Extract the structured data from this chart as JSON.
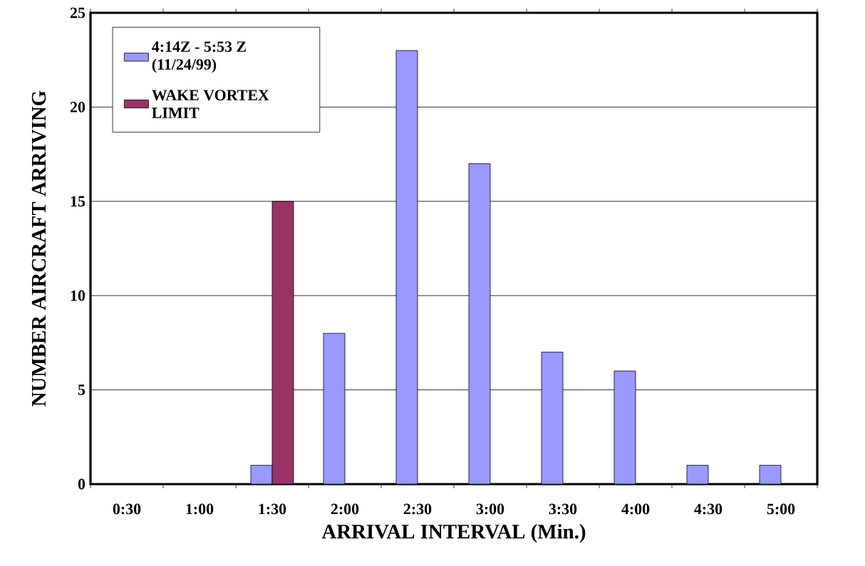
{
  "chart_data": {
    "type": "bar",
    "xlabel": "ARRIVAL INTERVAL (Min.)",
    "ylabel": "NUMBER AIRCRAFT ARRIVING",
    "categories": [
      "0:30",
      "1:00",
      "1:30",
      "2:00",
      "2:30",
      "3:00",
      "3:30",
      "4:00",
      "4:30",
      "5:00"
    ],
    "series": [
      {
        "name": "4:14Z - 5:53 Z (11/24/99)",
        "color": "#9999ff",
        "values": [
          0,
          0,
          1,
          8,
          23,
          17,
          7,
          6,
          1,
          1
        ]
      },
      {
        "name": "WAKE VORTEX LIMIT",
        "color": "#993366",
        "values": [
          null,
          null,
          15,
          null,
          null,
          null,
          null,
          null,
          null,
          null
        ]
      }
    ],
    "ylim": [
      0,
      25
    ],
    "yticks": [
      0,
      5,
      10,
      15,
      20,
      25
    ],
    "grid": "y",
    "legend": "top left"
  }
}
